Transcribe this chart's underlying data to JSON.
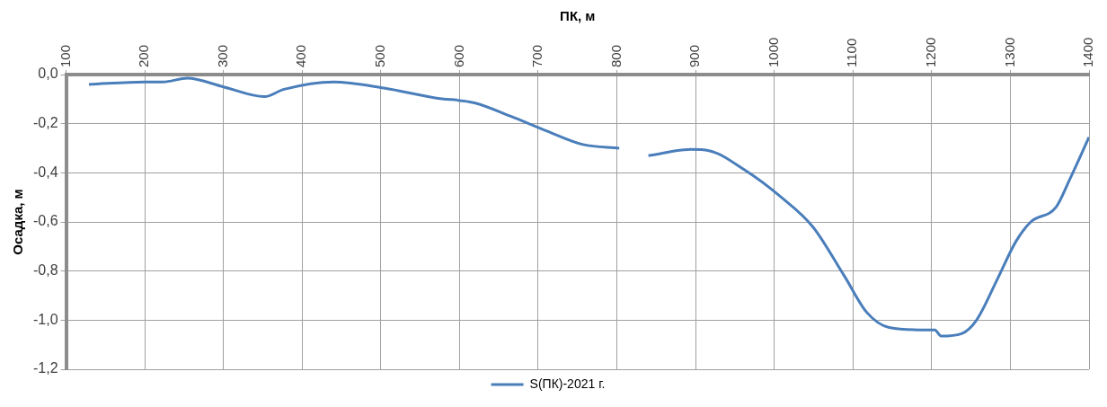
{
  "chart_data": {
    "type": "line",
    "xlabel": "ПК, м",
    "ylabel": "Осадка, м",
    "x": [
      129,
      200,
      223,
      254,
      300,
      352,
      377,
      440,
      504,
      569,
      619,
      665,
      711,
      757,
      803,
      820,
      840,
      894,
      917,
      963,
      1009,
      1049,
      1089,
      1118,
      1146,
      1192,
      1204,
      1212,
      1238,
      1257,
      1284,
      1307,
      1326,
      1358,
      1375,
      1400
    ],
    "series": [
      {
        "name": "S(ПК)-2021 г.",
        "color": "#4a7ebb",
        "values": [
          -0.04,
          -0.03,
          -0.03,
          -0.015,
          -0.05,
          -0.09,
          -0.06,
          -0.03,
          -0.055,
          -0.095,
          -0.115,
          -0.17,
          -0.23,
          -0.285,
          -0.3,
          null,
          -0.33,
          -0.305,
          -0.31,
          -0.39,
          -0.5,
          -0.62,
          -0.82,
          -0.97,
          -1.03,
          -1.04,
          -1.04,
          -1.065,
          -1.055,
          -1.0,
          -0.83,
          -0.68,
          -0.6,
          -0.54,
          -0.43,
          -0.255
        ]
      }
    ],
    "xlim": [
      100,
      1400
    ],
    "xticks": [
      100,
      200,
      300,
      400,
      500,
      600,
      700,
      800,
      900,
      1000,
      1100,
      1200,
      1300,
      1400
    ],
    "ylim": [
      -1.2,
      0
    ],
    "yticks": [
      {
        "value": -1.2,
        "label": "-1,2"
      },
      {
        "value": -1.0,
        "label": "-1,0"
      },
      {
        "value": -0.8,
        "label": "-0,8"
      },
      {
        "value": -0.6,
        "label": "-0,6"
      },
      {
        "value": -0.4,
        "label": "-0,4"
      },
      {
        "value": -0.2,
        "label": "-0,2"
      },
      {
        "value": 0,
        "label": "0,0"
      }
    ],
    "grid": true,
    "legend": "bottom",
    "marker": "none",
    "line_style": "solid"
  }
}
